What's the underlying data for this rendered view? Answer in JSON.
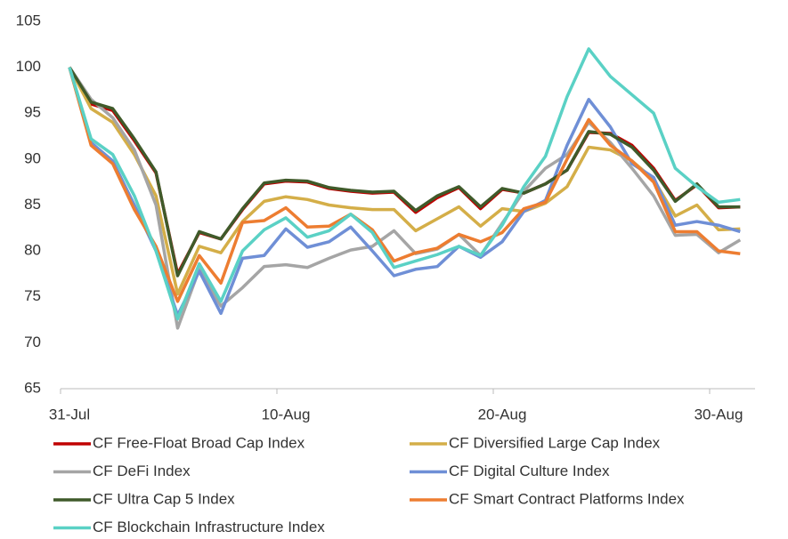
{
  "chart_data": {
    "type": "line",
    "categories": [
      "31-Jul",
      null,
      null,
      null,
      null,
      null,
      null,
      null,
      null,
      null,
      "10-Aug",
      null,
      null,
      null,
      null,
      null,
      null,
      null,
      null,
      null,
      "20-Aug",
      null,
      null,
      null,
      null,
      null,
      null,
      null,
      null,
      null,
      "30-Aug",
      null
    ],
    "ylim": [
      65,
      105
    ],
    "yticks": [
      65,
      70,
      75,
      80,
      85,
      90,
      95,
      100,
      105
    ],
    "grid": false,
    "series": [
      {
        "name": "CF Free-Float Broad Cap Index",
        "color": "#c00000",
        "values": [
          100,
          96,
          95.3,
          92,
          88.5,
          77.5,
          82,
          81.3,
          84.5,
          87.3,
          87.6,
          87.5,
          86.8,
          86.5,
          86.3,
          86.4,
          84.2,
          85.8,
          86.9,
          84.6,
          86.7,
          86.3,
          87.3,
          88.8,
          92.9,
          92.8,
          91.5,
          89,
          85.5,
          87.2,
          84.7,
          84.8
        ]
      },
      {
        "name": "CF Diversified Large Cap Index",
        "color": "#d4ae48",
        "values": [
          100,
          95.5,
          94,
          90.5,
          86,
          75.3,
          80.5,
          79.8,
          83.2,
          85.4,
          85.9,
          85.6,
          85,
          84.7,
          84.5,
          84.5,
          82.2,
          83.5,
          84.8,
          82.7,
          84.6,
          84.3,
          85.2,
          87,
          91.3,
          91,
          89.8,
          87.8,
          83.8,
          85,
          82.3,
          82.4
        ]
      },
      {
        "name": "CF DeFi Index",
        "color": "#a5a5a5",
        "values": [
          100,
          96.5,
          94.5,
          91,
          85,
          71.6,
          78,
          74,
          76,
          78.3,
          78.5,
          78.2,
          79.2,
          80.1,
          80.5,
          82.2,
          79.7,
          80.2,
          81.8,
          79.5,
          83,
          86.5,
          89,
          90.5,
          94,
          91.8,
          89,
          86,
          81.7,
          81.8,
          79.8,
          81.2
        ]
      },
      {
        "name": "CF Digital Culture Index",
        "color": "#6f8fd6",
        "values": [
          100,
          91.8,
          89.8,
          85,
          80,
          73,
          77.8,
          73.2,
          79.2,
          79.5,
          82.4,
          80.4,
          81,
          82.6,
          80,
          77.3,
          78,
          78.3,
          80.5,
          79.3,
          81,
          84.3,
          85.5,
          91.5,
          96.5,
          93.5,
          89.5,
          88,
          82.8,
          83.2,
          82.8,
          82.1
        ]
      },
      {
        "name": "CF Ultra Cap 5 Index",
        "color": "#3f5a2a",
        "values": [
          100,
          96.2,
          95.5,
          92.2,
          88.6,
          77.3,
          82.1,
          81.3,
          84.6,
          87.4,
          87.7,
          87.6,
          86.9,
          86.6,
          86.4,
          86.5,
          84.4,
          86,
          87,
          84.8,
          86.8,
          86.3,
          87.3,
          88.8,
          93,
          92.7,
          91.3,
          88.8,
          85.4,
          87.3,
          84.8,
          84.8
        ]
      },
      {
        "name": "CF Smart Contract Platforms Index",
        "color": "#ed7d31",
        "values": [
          100,
          91.5,
          89.5,
          84.5,
          80.5,
          74.5,
          79.5,
          76.5,
          83.1,
          83.3,
          84.7,
          82.6,
          82.7,
          84,
          82.3,
          78.9,
          79.8,
          80.3,
          81.8,
          81,
          82,
          84.6,
          85.3,
          90,
          94.3,
          91.5,
          89.8,
          87.5,
          82.1,
          82.1,
          80,
          79.7
        ]
      },
      {
        "name": "CF Blockchain Infrastructure Index",
        "color": "#5ad1c5",
        "values": [
          100,
          92.2,
          90.5,
          86,
          80,
          72.6,
          78.6,
          74.5,
          80,
          82.3,
          83.6,
          81.5,
          82.2,
          84,
          82,
          78.2,
          78.9,
          79.6,
          80.5,
          79.5,
          82.8,
          87,
          90.3,
          96.8,
          102,
          99,
          97,
          95,
          89,
          87,
          85.3,
          85.6
        ]
      }
    ]
  }
}
